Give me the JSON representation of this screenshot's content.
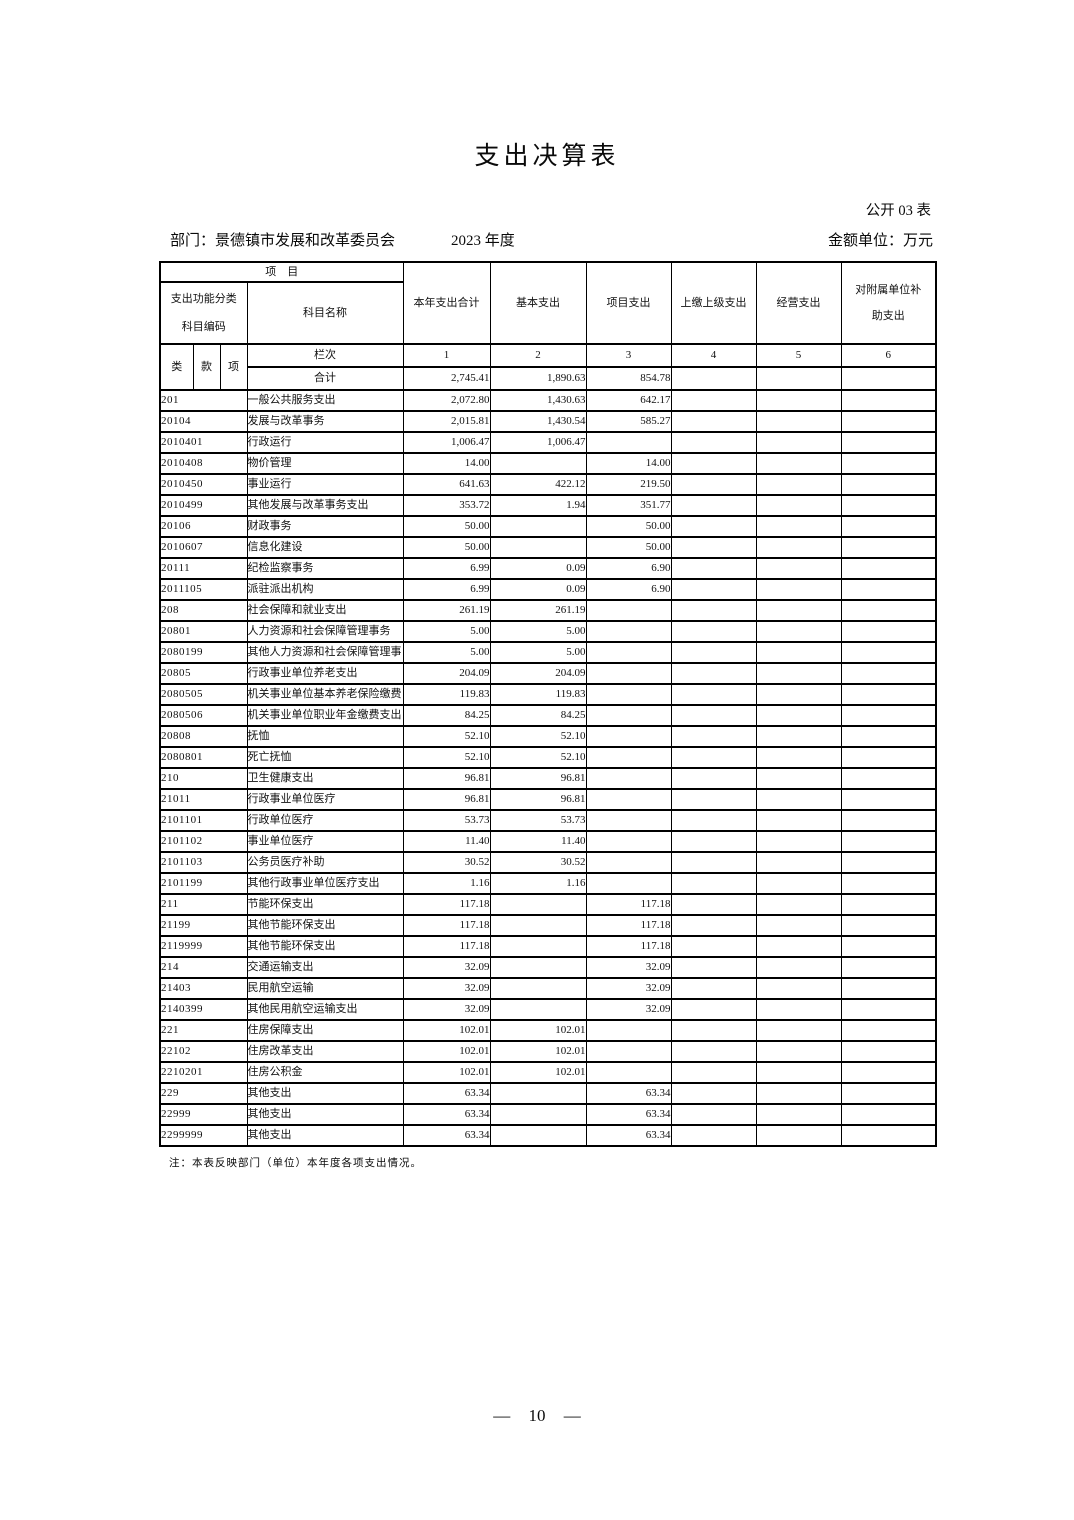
{
  "page": {
    "title": "支出决算表",
    "form_number": "公开 03 表",
    "department": "部门：景德镇市发展和改革委员会",
    "fiscal_year": "2023 年度",
    "amount_unit": "金额单位：万元",
    "note": "注：本表反映部门（单位）本年度各项支出情况。",
    "page_number": "— 10 —"
  },
  "table": {
    "header": {
      "project": "项　目",
      "func_class_line1": "支出功能分类",
      "func_class_line2": "科目编码",
      "subject_name": "科目名称",
      "columns": [
        "本年支出合计",
        "基本支出",
        "项目支出",
        "上缴上级支出",
        "经营支出",
        "对附属单位补助支出"
      ],
      "code_parts": [
        "类",
        "款",
        "项"
      ],
      "lanci": "栏次",
      "column_numbers": [
        "1",
        "2",
        "3",
        "4",
        "5",
        "6"
      ]
    },
    "total_row": {
      "label": "合计",
      "values": [
        "2,745.41",
        "1,890.63",
        "854.78",
        "",
        "",
        ""
      ]
    },
    "rows": [
      {
        "code": "201",
        "name": "一般公共服务支出",
        "values": [
          "2,072.80",
          "1,430.63",
          "642.17",
          "",
          "",
          ""
        ]
      },
      {
        "code": "20104",
        "name": "发展与改革事务",
        "values": [
          "2,015.81",
          "1,430.54",
          "585.27",
          "",
          "",
          ""
        ]
      },
      {
        "code": "2010401",
        "name": "行政运行",
        "values": [
          "1,006.47",
          "1,006.47",
          "",
          "",
          "",
          ""
        ]
      },
      {
        "code": "2010408",
        "name": "物价管理",
        "values": [
          "14.00",
          "",
          "14.00",
          "",
          "",
          ""
        ]
      },
      {
        "code": "2010450",
        "name": "事业运行",
        "values": [
          "641.63",
          "422.12",
          "219.50",
          "",
          "",
          ""
        ]
      },
      {
        "code": "2010499",
        "name": "其他发展与改革事务支出",
        "values": [
          "353.72",
          "1.94",
          "351.77",
          "",
          "",
          ""
        ]
      },
      {
        "code": "20106",
        "name": "财政事务",
        "values": [
          "50.00",
          "",
          "50.00",
          "",
          "",
          ""
        ]
      },
      {
        "code": "2010607",
        "name": "信息化建设",
        "values": [
          "50.00",
          "",
          "50.00",
          "",
          "",
          ""
        ]
      },
      {
        "code": "20111",
        "name": "纪检监察事务",
        "values": [
          "6.99",
          "0.09",
          "6.90",
          "",
          "",
          ""
        ]
      },
      {
        "code": "2011105",
        "name": "派驻派出机构",
        "values": [
          "6.99",
          "0.09",
          "6.90",
          "",
          "",
          ""
        ]
      },
      {
        "code": "208",
        "name": "社会保障和就业支出",
        "values": [
          "261.19",
          "261.19",
          "",
          "",
          "",
          ""
        ]
      },
      {
        "code": "20801",
        "name": "人力资源和社会保障管理事务",
        "values": [
          "5.00",
          "5.00",
          "",
          "",
          "",
          ""
        ]
      },
      {
        "code": "2080199",
        "name": "其他人力资源和社会保障管理事",
        "values": [
          "5.00",
          "5.00",
          "",
          "",
          "",
          ""
        ]
      },
      {
        "code": "20805",
        "name": "行政事业单位养老支出",
        "values": [
          "204.09",
          "204.09",
          "",
          "",
          "",
          ""
        ]
      },
      {
        "code": "2080505",
        "name": "机关事业单位基本养老保险缴费",
        "values": [
          "119.83",
          "119.83",
          "",
          "",
          "",
          ""
        ]
      },
      {
        "code": "2080506",
        "name": "机关事业单位职业年金缴费支出",
        "values": [
          "84.25",
          "84.25",
          "",
          "",
          "",
          ""
        ]
      },
      {
        "code": "20808",
        "name": "抚恤",
        "values": [
          "52.10",
          "52.10",
          "",
          "",
          "",
          ""
        ]
      },
      {
        "code": "2080801",
        "name": "死亡抚恤",
        "values": [
          "52.10",
          "52.10",
          "",
          "",
          "",
          ""
        ]
      },
      {
        "code": "210",
        "name": "卫生健康支出",
        "values": [
          "96.81",
          "96.81",
          "",
          "",
          "",
          ""
        ]
      },
      {
        "code": "21011",
        "name": "行政事业单位医疗",
        "values": [
          "96.81",
          "96.81",
          "",
          "",
          "",
          ""
        ]
      },
      {
        "code": "2101101",
        "name": "行政单位医疗",
        "values": [
          "53.73",
          "53.73",
          "",
          "",
          "",
          ""
        ]
      },
      {
        "code": "2101102",
        "name": "事业单位医疗",
        "values": [
          "11.40",
          "11.40",
          "",
          "",
          "",
          ""
        ]
      },
      {
        "code": "2101103",
        "name": "公务员医疗补助",
        "values": [
          "30.52",
          "30.52",
          "",
          "",
          "",
          ""
        ]
      },
      {
        "code": "2101199",
        "name": "其他行政事业单位医疗支出",
        "values": [
          "1.16",
          "1.16",
          "",
          "",
          "",
          ""
        ]
      },
      {
        "code": "211",
        "name": "节能环保支出",
        "values": [
          "117.18",
          "",
          "117.18",
          "",
          "",
          ""
        ]
      },
      {
        "code": "21199",
        "name": "其他节能环保支出",
        "values": [
          "117.18",
          "",
          "117.18",
          "",
          "",
          ""
        ]
      },
      {
        "code": "2119999",
        "name": "其他节能环保支出",
        "values": [
          "117.18",
          "",
          "117.18",
          "",
          "",
          ""
        ]
      },
      {
        "code": "214",
        "name": "交通运输支出",
        "values": [
          "32.09",
          "",
          "32.09",
          "",
          "",
          ""
        ]
      },
      {
        "code": "21403",
        "name": "民用航空运输",
        "values": [
          "32.09",
          "",
          "32.09",
          "",
          "",
          ""
        ]
      },
      {
        "code": "2140399",
        "name": "其他民用航空运输支出",
        "values": [
          "32.09",
          "",
          "32.09",
          "",
          "",
          ""
        ]
      },
      {
        "code": "221",
        "name": "住房保障支出",
        "values": [
          "102.01",
          "102.01",
          "",
          "",
          "",
          ""
        ]
      },
      {
        "code": "22102",
        "name": "住房改革支出",
        "values": [
          "102.01",
          "102.01",
          "",
          "",
          "",
          ""
        ]
      },
      {
        "code": "2210201",
        "name": "住房公积金",
        "values": [
          "102.01",
          "102.01",
          "",
          "",
          "",
          ""
        ]
      },
      {
        "code": "229",
        "name": "其他支出",
        "values": [
          "63.34",
          "",
          "63.34",
          "",
          "",
          ""
        ]
      },
      {
        "code": "22999",
        "name": "其他支出",
        "values": [
          "63.34",
          "",
          "63.34",
          "",
          "",
          ""
        ]
      },
      {
        "code": "2299999",
        "name": "其他支出",
        "values": [
          "63.34",
          "",
          "63.34",
          "",
          "",
          ""
        ]
      }
    ]
  }
}
